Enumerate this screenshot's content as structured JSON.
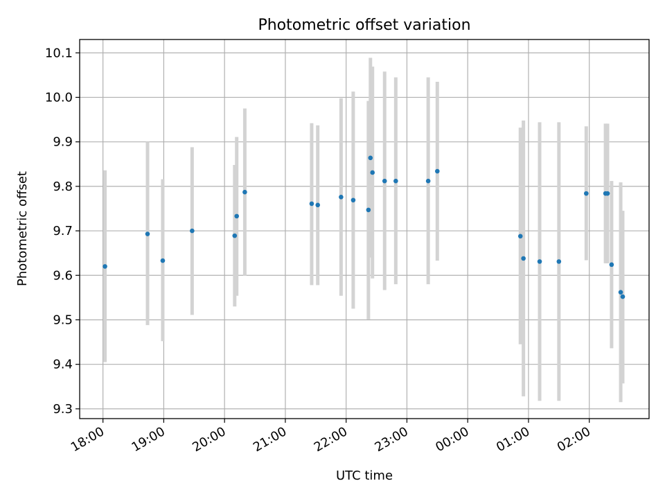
{
  "chart_data": {
    "type": "scatter",
    "title": "Photometric offset variation",
    "xlabel": "UTC time",
    "ylabel": "Photometric offset",
    "grid": true,
    "x_ticks": [
      "18:00",
      "19:00",
      "20:00",
      "21:00",
      "22:00",
      "23:00",
      "00:00",
      "01:00",
      "02:00"
    ],
    "y_ticks": [
      "9.3",
      "9.4",
      "9.5",
      "9.6",
      "9.7",
      "9.8",
      "9.9",
      "10.0",
      "10.1"
    ],
    "xlim": [
      "17:37",
      "02:59"
    ],
    "ylim": [
      9.278,
      10.13
    ],
    "colors": {
      "point": "#1f77b4",
      "errorbar": "#d3d3d3",
      "grid": "#b0b0b0"
    },
    "points": [
      {
        "x": "18:02",
        "y": 9.62,
        "ylow": 9.405,
        "yhigh": 9.836
      },
      {
        "x": "18:44",
        "y": 9.693,
        "ylow": 9.488,
        "yhigh": 9.9
      },
      {
        "x": "18:59",
        "y": 9.633,
        "ylow": 9.452,
        "yhigh": 9.816
      },
      {
        "x": "19:28",
        "y": 9.7,
        "ylow": 9.511,
        "yhigh": 9.888
      },
      {
        "x": "20:10",
        "y": 9.689,
        "ylow": 9.53,
        "yhigh": 9.848
      },
      {
        "x": "20:12",
        "y": 9.733,
        "ylow": 9.554,
        "yhigh": 9.911
      },
      {
        "x": "20:20",
        "y": 9.787,
        "ylow": 9.599,
        "yhigh": 9.975
      },
      {
        "x": "21:26",
        "y": 9.761,
        "ylow": 9.578,
        "yhigh": 9.942
      },
      {
        "x": "21:32",
        "y": 9.758,
        "ylow": 9.578,
        "yhigh": 9.937
      },
      {
        "x": "21:55",
        "y": 9.776,
        "ylow": 9.554,
        "yhigh": 9.998
      },
      {
        "x": "22:07",
        "y": 9.769,
        "ylow": 9.525,
        "yhigh": 10.013
      },
      {
        "x": "22:22",
        "y": 9.747,
        "ylow": 9.501,
        "yhigh": 9.992
      },
      {
        "x": "22:24",
        "y": 9.864,
        "ylow": 9.64,
        "yhigh": 10.089
      },
      {
        "x": "22:26",
        "y": 9.831,
        "ylow": 9.593,
        "yhigh": 10.069
      },
      {
        "x": "22:38",
        "y": 9.812,
        "ylow": 9.567,
        "yhigh": 10.058
      },
      {
        "x": "22:49",
        "y": 9.812,
        "ylow": 9.58,
        "yhigh": 10.045
      },
      {
        "x": "23:21",
        "y": 9.812,
        "ylow": 9.58,
        "yhigh": 10.045
      },
      {
        "x": "23:30",
        "y": 9.834,
        "ylow": 9.633,
        "yhigh": 10.035
      },
      {
        "x": "00:52",
        "y": 9.688,
        "ylow": 9.445,
        "yhigh": 9.932
      },
      {
        "x": "00:55",
        "y": 9.638,
        "ylow": 9.328,
        "yhigh": 9.948
      },
      {
        "x": "01:11",
        "y": 9.631,
        "ylow": 9.318,
        "yhigh": 9.944
      },
      {
        "x": "01:30",
        "y": 9.631,
        "ylow": 9.318,
        "yhigh": 9.944
      },
      {
        "x": "01:57",
        "y": 9.784,
        "ylow": 9.634,
        "yhigh": 9.935
      },
      {
        "x": "02:16",
        "y": 9.784,
        "ylow": 9.627,
        "yhigh": 9.941
      },
      {
        "x": "02:18",
        "y": 9.784,
        "ylow": 9.627,
        "yhigh": 9.941
      },
      {
        "x": "02:22",
        "y": 9.624,
        "ylow": 9.436,
        "yhigh": 9.812
      },
      {
        "x": "02:31",
        "y": 9.562,
        "ylow": 9.315,
        "yhigh": 9.809
      },
      {
        "x": "02:33",
        "y": 9.552,
        "ylow": 9.357,
        "yhigh": 9.745
      }
    ]
  }
}
